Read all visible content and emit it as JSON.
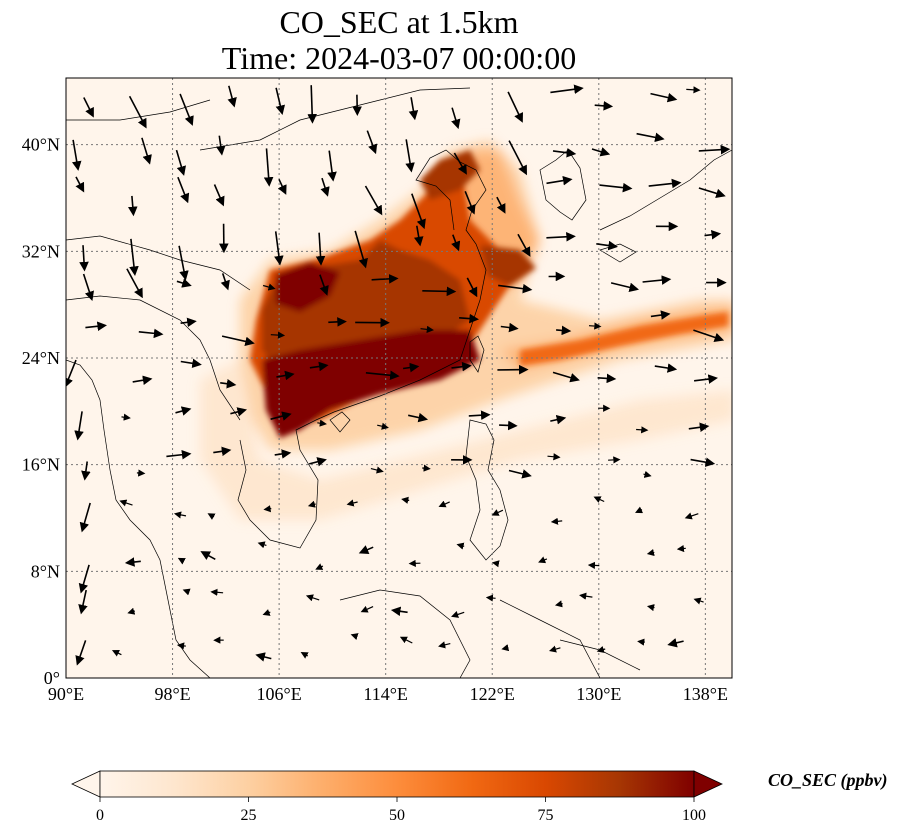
{
  "title": {
    "line1": "CO_SEC at 1.5km",
    "line2": "Time: 2024-03-07 00:00:00"
  },
  "map": {
    "lon_range": [
      90,
      140
    ],
    "lat_range": [
      0,
      45
    ],
    "x_ticks": [
      "90°E",
      "98°E",
      "106°E",
      "114°E",
      "122°E",
      "130°E",
      "138°E"
    ],
    "x_tick_values": [
      90,
      98,
      106,
      114,
      122,
      130,
      138
    ],
    "y_ticks": [
      "0°",
      "8°N",
      "16°N",
      "24°N",
      "32°N",
      "40°N"
    ],
    "y_tick_values": [
      0,
      8,
      16,
      24,
      32,
      40
    ],
    "gridlines": true,
    "field_colors": {
      "low": "#fff5eb",
      "mid": "#fd8d3c",
      "high": "#7f0000"
    }
  },
  "colorbar": {
    "label": "CO_SEC (ppbv)",
    "ticks": [
      "0",
      "25",
      "50",
      "75",
      "100"
    ],
    "range": [
      0,
      100
    ],
    "extend": "both",
    "colors": [
      "#fff5eb",
      "#fee6ce",
      "#fdd0a2",
      "#fdae6b",
      "#fd8d3c",
      "#f16913",
      "#d94801",
      "#a63603",
      "#7f0000"
    ]
  }
}
